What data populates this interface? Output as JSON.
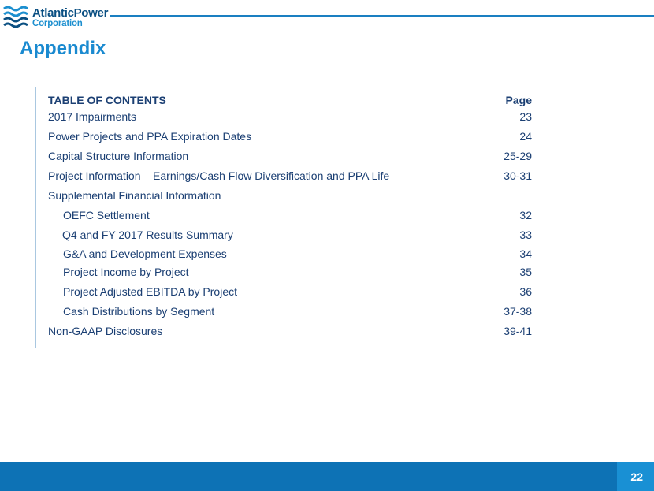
{
  "brand": {
    "line1": "AtlanticPower",
    "line2": "Corporation",
    "logo_icon": "wave-lines-icon",
    "primary_color": "#1a8ad0",
    "dark_color": "#0a4f82",
    "text_color": "#1b3f73"
  },
  "title": "Appendix",
  "toc": {
    "heading": "TABLE OF CONTENTS",
    "page_heading": "Page",
    "items": [
      {
        "label": "2017 Impairments",
        "page": "23"
      },
      {
        "label": "Power Projects and PPA Expiration Dates",
        "page": "24"
      },
      {
        "label": "Capital Structure Information",
        "page": "25-29"
      },
      {
        "label": "Project Information – Earnings/Cash Flow Diversification and PPA Life",
        "page": "30-31"
      },
      {
        "label": "Supplemental Financial Information",
        "page": ""
      },
      {
        "label": "OEFC Settlement",
        "page": "32"
      },
      {
        "label": "Q4 and FY 2017 Results Summary",
        "page": "33"
      },
      {
        "label": "G&A and Development Expenses",
        "page": "34"
      },
      {
        "label": "Project Income by Project",
        "page": "35"
      },
      {
        "label": "Project Adjusted EBITDA by Project",
        "page": "36"
      },
      {
        "label": "Cash Distributions by Segment",
        "page": "37-38"
      },
      {
        "label": "Non-GAAP Disclosures",
        "page": "39-41"
      }
    ]
  },
  "footer": {
    "page_number": "22"
  }
}
